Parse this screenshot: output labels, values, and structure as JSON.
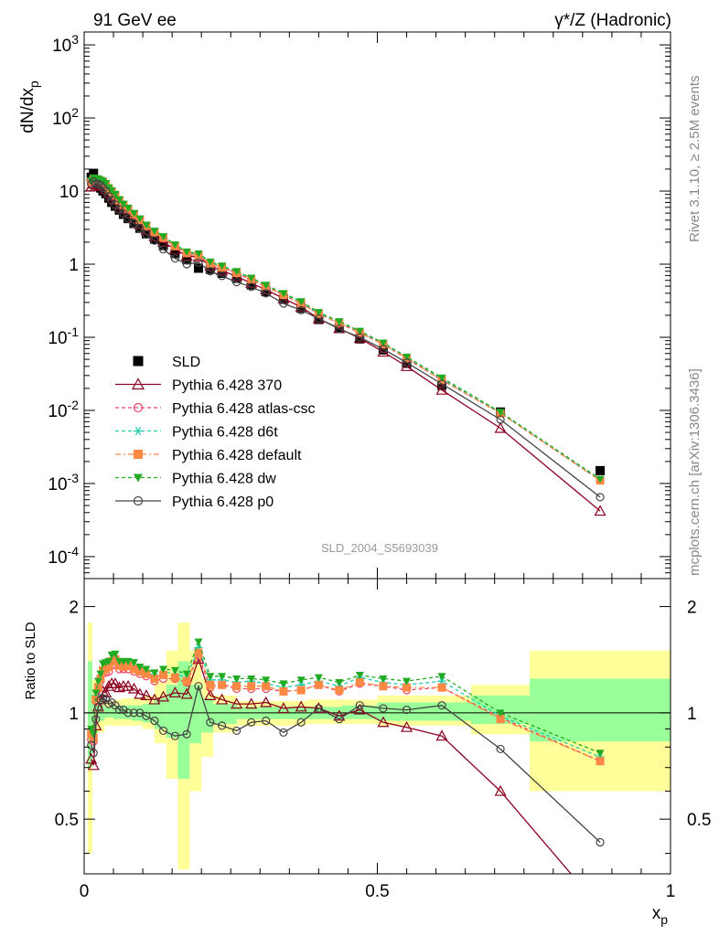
{
  "header": {
    "left_title": "91 GeV ee",
    "right_title": "γ*/Z (Hadronic)"
  },
  "side_labels": {
    "rivet": "Rivet 3.1.10, ≥ 2.5M events",
    "mcplots": "mcplots.cern.ch [arXiv:1306.3436]"
  },
  "watermark": "SLD_2004_S5693039",
  "chart_data": [
    {
      "type": "scatter",
      "panel": "main",
      "ylabel": "dN/dx_p",
      "yscale": "log",
      "ylim": [
        5e-05,
        1500
      ],
      "xlim": [
        0,
        1
      ],
      "ytick_labels": [
        "10^-4",
        "10^-3",
        "10^-2",
        "10^-1",
        "1",
        "10",
        "10^2",
        "10^3"
      ],
      "legend_position": "lower-left",
      "x": [
        0.012,
        0.016,
        0.02,
        0.024,
        0.028,
        0.032,
        0.037,
        0.042,
        0.047,
        0.053,
        0.06,
        0.067,
        0.075,
        0.085,
        0.095,
        0.106,
        0.12,
        0.135,
        0.155,
        0.175,
        0.195,
        0.215,
        0.235,
        0.26,
        0.285,
        0.31,
        0.34,
        0.37,
        0.4,
        0.435,
        0.47,
        0.51,
        0.55,
        0.61,
        0.71,
        0.88
      ],
      "series": [
        {
          "name": "SLD",
          "style": "data",
          "color": "#000000",
          "marker": "square-filled",
          "values": [
            15.5,
            17.5,
            13.0,
            12.0,
            11.0,
            10.0,
            9.2,
            8.0,
            7.0,
            6.2,
            5.5,
            4.8,
            4.2,
            3.6,
            3.1,
            2.6,
            2.2,
            1.8,
            1.4,
            1.15,
            0.88,
            0.85,
            0.75,
            0.64,
            0.52,
            0.42,
            0.33,
            0.25,
            0.175,
            0.135,
            0.095,
            0.067,
            0.044,
            0.022,
            0.0095,
            0.0015
          ]
        },
        {
          "name": "Pythia 6.428 370",
          "color": "#8b0020",
          "marker": "triangle-open",
          "line": "solid",
          "values": [
            11.5,
            12.5,
            12.0,
            12.5,
            12.0,
            11.5,
            10.5,
            9.5,
            8.5,
            7.5,
            6.5,
            5.7,
            5.0,
            4.2,
            3.5,
            2.9,
            2.4,
            2.0,
            1.6,
            1.3,
            1.25,
            0.95,
            0.82,
            0.68,
            0.55,
            0.45,
            0.34,
            0.26,
            0.18,
            0.132,
            0.097,
            0.063,
            0.04,
            0.019,
            0.0057,
            0.00042
          ]
        },
        {
          "name": "Pythia 6.428 atlas-csc",
          "color": "#ee4466",
          "marker": "circle-open",
          "line": "dashed",
          "values": [
            13.0,
            14.5,
            14.0,
            14.0,
            13.5,
            13.0,
            12.0,
            10.5,
            9.5,
            8.5,
            7.3,
            6.4,
            5.6,
            4.7,
            4.0,
            3.3,
            2.7,
            2.25,
            1.75,
            1.4,
            1.28,
            1.0,
            0.9,
            0.75,
            0.61,
            0.49,
            0.38,
            0.29,
            0.21,
            0.155,
            0.115,
            0.08,
            0.051,
            0.026,
            0.0092,
            0.0011
          ]
        },
        {
          "name": "Pythia 6.428 d6t",
          "color": "#22ccaa",
          "marker": "star",
          "line": "dashed",
          "values": [
            13.8,
            15.0,
            14.5,
            14.5,
            14.0,
            13.5,
            12.5,
            11.0,
            10.0,
            9.0,
            7.6,
            6.6,
            5.8,
            4.9,
            4.1,
            3.4,
            2.8,
            2.35,
            1.8,
            1.45,
            1.35,
            1.05,
            0.93,
            0.78,
            0.64,
            0.51,
            0.39,
            0.3,
            0.215,
            0.16,
            0.12,
            0.082,
            0.053,
            0.027,
            0.0093,
            0.00112
          ]
        },
        {
          "name": "Pythia 6.428 default",
          "color": "#ff8844",
          "marker": "square-filled",
          "line": "dashdot",
          "values": [
            13.5,
            14.8,
            14.2,
            14.2,
            13.8,
            13.2,
            12.2,
            10.8,
            9.8,
            8.8,
            7.5,
            6.5,
            5.7,
            4.8,
            4.05,
            3.35,
            2.75,
            2.3,
            1.77,
            1.42,
            1.3,
            1.02,
            0.9,
            0.76,
            0.62,
            0.5,
            0.38,
            0.29,
            0.21,
            0.156,
            0.116,
            0.08,
            0.052,
            0.026,
            0.0091,
            0.0011
          ]
        },
        {
          "name": "Pythia 6.428 dw",
          "color": "#22aa22",
          "marker": "triangle-down-filled",
          "line": "dashed",
          "values": [
            14.0,
            15.2,
            14.8,
            14.8,
            14.2,
            13.8,
            12.8,
            11.2,
            10.2,
            9.1,
            7.7,
            6.7,
            5.9,
            5.0,
            4.2,
            3.45,
            2.85,
            2.4,
            1.85,
            1.48,
            1.4,
            1.08,
            0.95,
            0.8,
            0.65,
            0.52,
            0.4,
            0.31,
            0.22,
            0.165,
            0.122,
            0.084,
            0.054,
            0.028,
            0.0095,
            0.00115
          ]
        },
        {
          "name": "Pythia 6.428 p0",
          "color": "#444444",
          "marker": "circle-open",
          "line": "solid",
          "values": [
            12.5,
            13.5,
            12.5,
            12.5,
            12.0,
            11.0,
            10.0,
            8.5,
            7.5,
            6.5,
            5.6,
            4.9,
            4.2,
            3.6,
            3.1,
            2.55,
            2.1,
            1.6,
            1.2,
            1.0,
            1.05,
            0.8,
            0.69,
            0.57,
            0.49,
            0.4,
            0.29,
            0.235,
            0.18,
            0.13,
            0.1,
            0.069,
            0.045,
            0.023,
            0.0075,
            0.00065
          ]
        }
      ]
    },
    {
      "type": "line",
      "panel": "ratio",
      "ylabel": "Ratio to SLD",
      "xlabel": "x_p",
      "yscale": "log",
      "ylim": [
        0.35,
        2.4
      ],
      "xlim": [
        0,
        1
      ],
      "ytick_labels": [
        "0.5",
        "1",
        "2"
      ],
      "xtick_labels": [
        "0",
        "0.5",
        "1"
      ],
      "x": [
        0.012,
        0.016,
        0.02,
        0.024,
        0.028,
        0.032,
        0.037,
        0.042,
        0.047,
        0.053,
        0.06,
        0.067,
        0.075,
        0.085,
        0.095,
        0.106,
        0.12,
        0.135,
        0.155,
        0.175,
        0.195,
        0.215,
        0.235,
        0.26,
        0.285,
        0.31,
        0.34,
        0.37,
        0.4,
        0.435,
        0.47,
        0.51,
        0.55,
        0.61,
        0.71,
        0.88
      ],
      "bands": {
        "bin_edges": [
          0.0,
          0.006,
          0.014,
          0.022,
          0.035,
          0.05,
          0.065,
          0.08,
          0.1,
          0.12,
          0.14,
          0.16,
          0.18,
          0.2,
          0.22,
          0.26,
          0.3,
          0.38,
          0.44,
          0.5,
          0.66,
          0.76,
          1.0
        ],
        "stat_low": [
          1.0,
          0.7,
          0.88,
          0.95,
          0.97,
          0.96,
          0.96,
          0.95,
          0.94,
          0.9,
          0.85,
          0.65,
          0.82,
          0.88,
          0.93,
          0.96,
          0.96,
          0.96,
          0.96,
          0.95,
          0.93,
          0.83
        ],
        "stat_high": [
          1.0,
          1.4,
          1.12,
          1.05,
          1.04,
          1.05,
          1.05,
          1.05,
          1.06,
          1.1,
          1.2,
          1.4,
          1.2,
          1.1,
          1.06,
          1.04,
          1.04,
          1.04,
          1.05,
          1.07,
          1.12,
          1.25
        ],
        "syst_low": [
          1.0,
          0.4,
          0.82,
          0.88,
          0.92,
          0.92,
          0.92,
          0.92,
          0.9,
          0.82,
          0.65,
          0.36,
          0.6,
          0.75,
          0.88,
          0.92,
          0.92,
          0.93,
          0.93,
          0.92,
          0.87,
          0.6
        ],
        "syst_high": [
          1.0,
          1.8,
          1.24,
          1.12,
          1.08,
          1.09,
          1.1,
          1.1,
          1.12,
          1.22,
          1.5,
          1.8,
          1.5,
          1.25,
          1.12,
          1.08,
          1.08,
          1.09,
          1.09,
          1.12,
          1.2,
          1.5
        ]
      },
      "series": [
        {
          "name": "Pythia 6.428 370",
          "color": "#8b0020",
          "values": [
            0.74,
            0.71,
            0.92,
            1.04,
            1.09,
            1.15,
            1.14,
            1.19,
            1.21,
            1.21,
            1.18,
            1.19,
            1.19,
            1.17,
            1.13,
            1.12,
            1.09,
            1.11,
            1.14,
            1.13,
            1.42,
            1.12,
            1.09,
            1.06,
            1.06,
            1.07,
            1.03,
            1.04,
            1.03,
            0.98,
            1.02,
            0.94,
            0.91,
            0.86,
            0.6,
            0.28
          ]
        },
        {
          "name": "Pythia 6.428 atlas-csc",
          "color": "#ee4466",
          "values": [
            0.84,
            0.83,
            1.08,
            1.17,
            1.23,
            1.3,
            1.3,
            1.31,
            1.36,
            1.37,
            1.33,
            1.33,
            1.33,
            1.31,
            1.29,
            1.27,
            1.23,
            1.25,
            1.25,
            1.22,
            1.45,
            1.18,
            1.2,
            1.17,
            1.17,
            1.17,
            1.15,
            1.16,
            1.2,
            1.15,
            1.21,
            1.19,
            1.16,
            1.18,
            0.97,
            0.73
          ]
        },
        {
          "name": "Pythia 6.428 d6t",
          "color": "#22ccaa",
          "values": [
            0.89,
            0.86,
            1.12,
            1.21,
            1.27,
            1.35,
            1.36,
            1.38,
            1.43,
            1.45,
            1.38,
            1.38,
            1.38,
            1.36,
            1.32,
            1.31,
            1.27,
            1.31,
            1.29,
            1.26,
            1.53,
            1.24,
            1.24,
            1.22,
            1.23,
            1.21,
            1.18,
            1.2,
            1.23,
            1.19,
            1.26,
            1.22,
            1.2,
            1.23,
            0.98,
            0.75
          ]
        },
        {
          "name": "Pythia 6.428 default",
          "color": "#ff8844",
          "values": [
            0.87,
            0.85,
            1.09,
            1.18,
            1.25,
            1.32,
            1.33,
            1.35,
            1.4,
            1.42,
            1.36,
            1.35,
            1.36,
            1.33,
            1.31,
            1.29,
            1.25,
            1.28,
            1.26,
            1.23,
            1.48,
            1.2,
            1.2,
            1.19,
            1.19,
            1.19,
            1.15,
            1.16,
            1.2,
            1.16,
            1.22,
            1.19,
            1.18,
            1.18,
            0.96,
            0.73
          ]
        },
        {
          "name": "Pythia 6.428 dw",
          "color": "#22aa22",
          "values": [
            0.9,
            0.87,
            1.14,
            1.23,
            1.29,
            1.38,
            1.39,
            1.4,
            1.46,
            1.47,
            1.4,
            1.4,
            1.4,
            1.39,
            1.35,
            1.33,
            1.3,
            1.33,
            1.32,
            1.29,
            1.59,
            1.27,
            1.27,
            1.25,
            1.25,
            1.24,
            1.21,
            1.24,
            1.26,
            1.22,
            1.28,
            1.25,
            1.23,
            1.27,
            1.0,
            0.77
          ]
        },
        {
          "name": "Pythia 6.428 p0",
          "color": "#444444",
          "values": [
            0.81,
            0.77,
            0.96,
            1.04,
            1.09,
            1.1,
            1.09,
            1.06,
            1.07,
            1.05,
            1.02,
            1.02,
            1.0,
            1.0,
            1.0,
            0.98,
            0.95,
            0.89,
            0.86,
            0.87,
            1.19,
            0.94,
            0.92,
            0.89,
            0.94,
            0.95,
            0.88,
            0.94,
            1.03,
            0.96,
            1.05,
            1.03,
            1.02,
            1.05,
            0.79,
            0.43
          ]
        }
      ]
    }
  ]
}
